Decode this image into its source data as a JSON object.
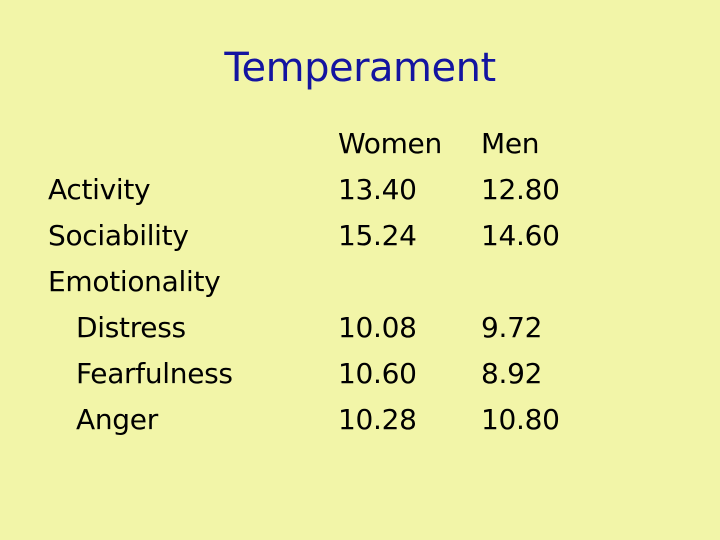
{
  "title": "Temperament",
  "table": {
    "headers": {
      "women": "Women",
      "men": "Men"
    },
    "rows": [
      {
        "label": "Activity",
        "women": "13.40",
        "men": "12.80"
      },
      {
        "label": "Sociability",
        "women": "15.24",
        "men": "14.60"
      },
      {
        "label": "Emotionality",
        "women": "",
        "men": ""
      },
      {
        "label": "Distress",
        "women": "10.08",
        "men": "9.72"
      },
      {
        "label": "Fearfulness",
        "women": "10.60",
        "men": "8.92"
      },
      {
        "label": "Anger",
        "women": "10.28",
        "men": "10.80"
      }
    ]
  }
}
